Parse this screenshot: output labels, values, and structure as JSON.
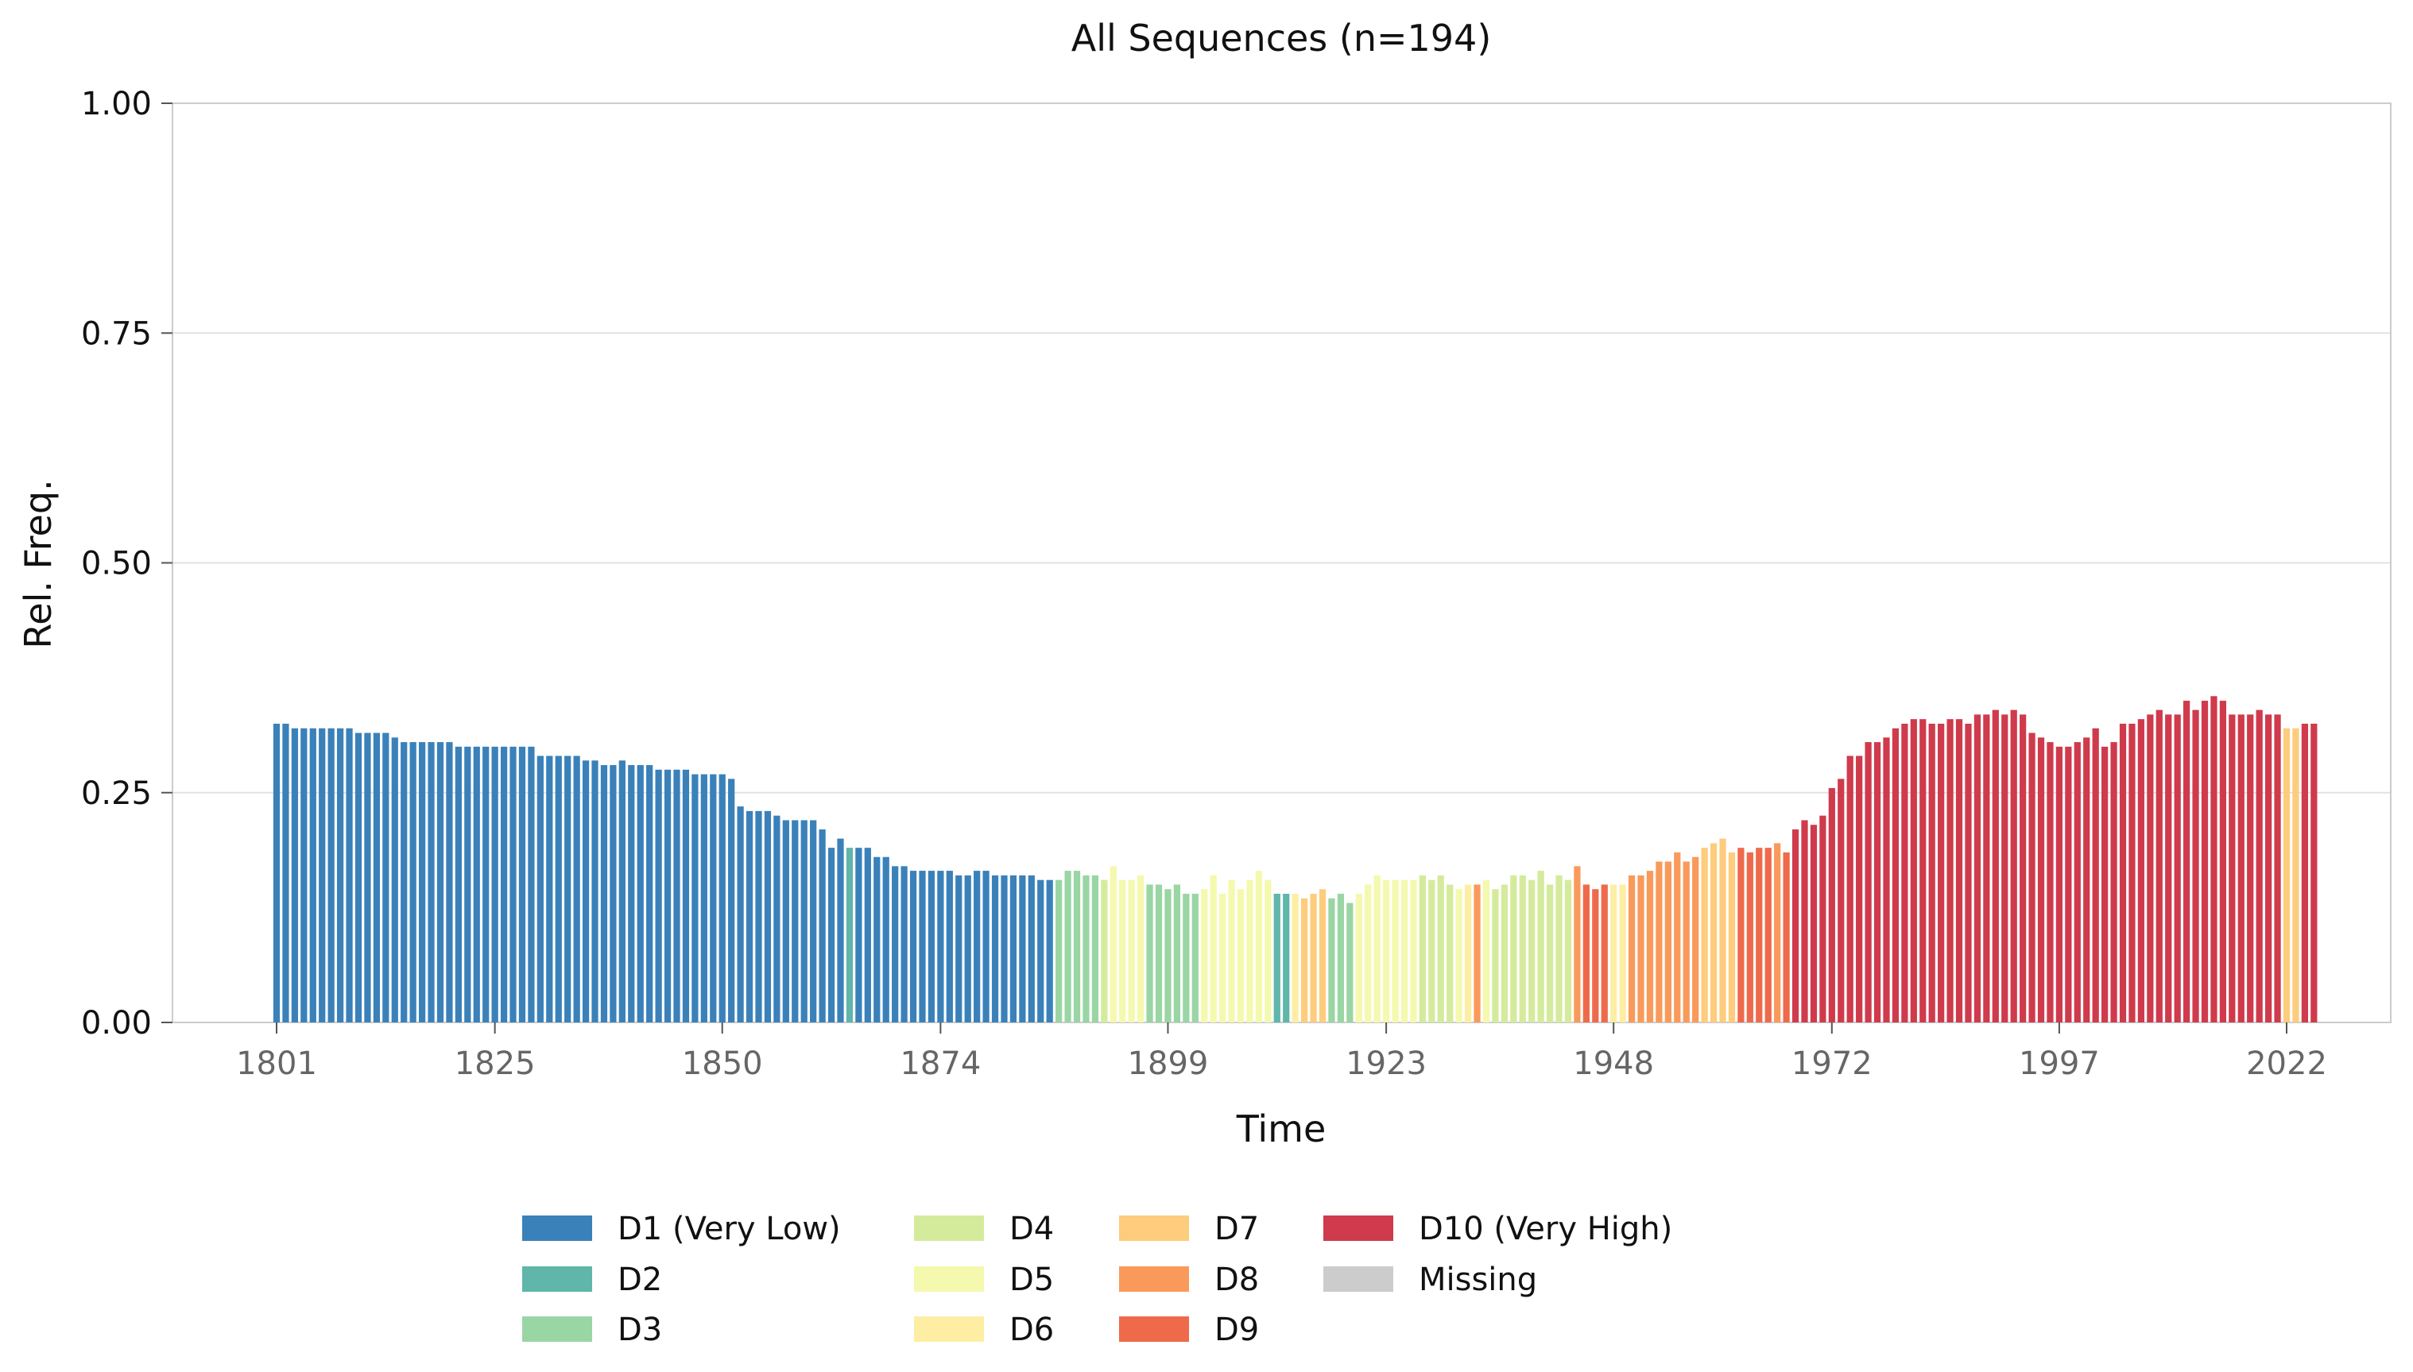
{
  "chart_data": {
    "type": "bar",
    "title": "All Sequences (n=194)",
    "xlabel": "Time",
    "ylabel": "Rel. Freq.",
    "ylim": [
      0,
      1
    ],
    "yticks": [
      "0.00",
      "0.25",
      "0.50",
      "0.75",
      "1.00"
    ],
    "xticks": [
      "1801",
      "1825",
      "1850",
      "1874",
      "1899",
      "1923",
      "1948",
      "1972",
      "1997",
      "2022"
    ],
    "x_start": 1801,
    "x_end": 2022,
    "grid": true,
    "legend_position": "bottom-center",
    "category_colors": {
      "D1 (Very Low)": "#3a81ba",
      "D2": "#5fb6a9",
      "D3": "#9ad5a4",
      "D4": "#d4eb9c",
      "D5": "#f4f9ae",
      "D6": "#fdeea4",
      "D7": "#fdcc7c",
      "D8": "#f99a5b",
      "D9": "#ee6a4b",
      "D10 (Very High)": "#cf3b4c",
      "Missing": "#cccccc"
    },
    "legend": [
      "D1 (Very Low)",
      "D2",
      "D3",
      "D4",
      "D5",
      "D6",
      "D7",
      "D8",
      "D9",
      "D10 (Very High)",
      "Missing"
    ],
    "segments": [
      {
        "category": "D1 (Very Low)",
        "values": [
          0.325,
          0.325,
          0.32,
          0.32,
          0.32,
          0.32,
          0.32,
          0.32,
          0.32,
          0.315,
          0.315,
          0.315,
          0.315,
          0.31,
          0.305,
          0.305,
          0.305,
          0.305,
          0.305,
          0.305,
          0.3,
          0.3,
          0.3,
          0.3,
          0.3,
          0.3,
          0.3,
          0.3,
          0.3,
          0.29,
          0.29,
          0.29,
          0.29,
          0.29,
          0.285,
          0.285,
          0.28,
          0.28,
          0.285,
          0.28,
          0.28,
          0.28,
          0.275,
          0.275,
          0.275,
          0.275,
          0.27,
          0.27,
          0.27,
          0.27,
          0.265,
          0.235,
          0.23,
          0.23,
          0.23,
          0.225,
          0.22,
          0.22,
          0.22,
          0.22,
          0.21,
          0.19,
          0.2
        ]
      },
      {
        "category": "D2",
        "values": [
          0.19
        ]
      },
      {
        "category": "D1 (Very Low)",
        "values": [
          0.19,
          0.19,
          0.18,
          0.18,
          0.17,
          0.17,
          0.165,
          0.165,
          0.165,
          0.165,
          0.165,
          0.16,
          0.16,
          0.165,
          0.165,
          0.16,
          0.16,
          0.16,
          0.16,
          0.16,
          0.155,
          0.155
        ]
      },
      {
        "category": "D3",
        "values": [
          0.155,
          0.165,
          0.165,
          0.16,
          0.16
        ]
      },
      {
        "category": "D4",
        "values": [
          0.155
        ]
      },
      {
        "category": "D5",
        "values": [
          0.17,
          0.155,
          0.155,
          0.16
        ]
      },
      {
        "category": "D3",
        "values": [
          0.15,
          0.15,
          0.145,
          0.15,
          0.14,
          0.14
        ]
      },
      {
        "category": "D5",
        "values": [
          0.145,
          0.16,
          0.14,
          0.155,
          0.145,
          0.155,
          0.165,
          0.155
        ]
      },
      {
        "category": "D2",
        "values": [
          0.14,
          0.14
        ]
      },
      {
        "category": "D6",
        "values": [
          0.14
        ]
      },
      {
        "category": "D7",
        "values": [
          0.135,
          0.14,
          0.145
        ]
      },
      {
        "category": "D3",
        "values": [
          0.135,
          0.14,
          0.13
        ]
      },
      {
        "category": "D5",
        "values": [
          0.14,
          0.15,
          0.16,
          0.155,
          0.155,
          0.155,
          0.155
        ]
      },
      {
        "category": "D4",
        "values": [
          0.16,
          0.155,
          0.16,
          0.15
        ]
      },
      {
        "category": "D5",
        "values": [
          0.145
        ]
      },
      {
        "category": "D6",
        "values": [
          0.15
        ]
      },
      {
        "category": "D8",
        "values": [
          0.15
        ]
      },
      {
        "category": "D5",
        "values": [
          0.155
        ]
      },
      {
        "category": "D4",
        "values": [
          0.145,
          0.15,
          0.16,
          0.16,
          0.155,
          0.165,
          0.15,
          0.16,
          0.155
        ]
      },
      {
        "category": "D8",
        "values": [
          0.17
        ]
      },
      {
        "category": "D9",
        "values": [
          0.15,
          0.145,
          0.15
        ]
      },
      {
        "category": "D6",
        "values": [
          0.15,
          0.15
        ]
      },
      {
        "category": "D8",
        "values": [
          0.16,
          0.16,
          0.165,
          0.175,
          0.175,
          0.185,
          0.175,
          0.18
        ]
      },
      {
        "category": "D7",
        "values": [
          0.19,
          0.195,
          0.2,
          0.185
        ]
      },
      {
        "category": "D9",
        "values": [
          0.19,
          0.185,
          0.19,
          0.19
        ]
      },
      {
        "category": "D8",
        "values": [
          0.195
        ]
      },
      {
        "category": "D9",
        "values": [
          0.185
        ]
      },
      {
        "category": "D10 (Very High)",
        "values": [
          0.21,
          0.22,
          0.215,
          0.225,
          0.255,
          0.265,
          0.29,
          0.29,
          0.305,
          0.305,
          0.31,
          0.32,
          0.325,
          0.33,
          0.33,
          0.325,
          0.325,
          0.33,
          0.33,
          0.325,
          0.335,
          0.335,
          0.34,
          0.335,
          0.34,
          0.335,
          0.315,
          0.31,
          0.305,
          0.3,
          0.3,
          0.305,
          0.31,
          0.32,
          0.3,
          0.305,
          0.325,
          0.325,
          0.33,
          0.335,
          0.34,
          0.335,
          0.335,
          0.35,
          0.34,
          0.35,
          0.355,
          0.35,
          0.335,
          0.335,
          0.335,
          0.34,
          0.335,
          0.335
        ]
      },
      {
        "category": "D7",
        "values": [
          0.32,
          0.32
        ]
      },
      {
        "category": "D10 (Very High)",
        "values": [
          0.325,
          0.325
        ]
      }
    ]
  }
}
